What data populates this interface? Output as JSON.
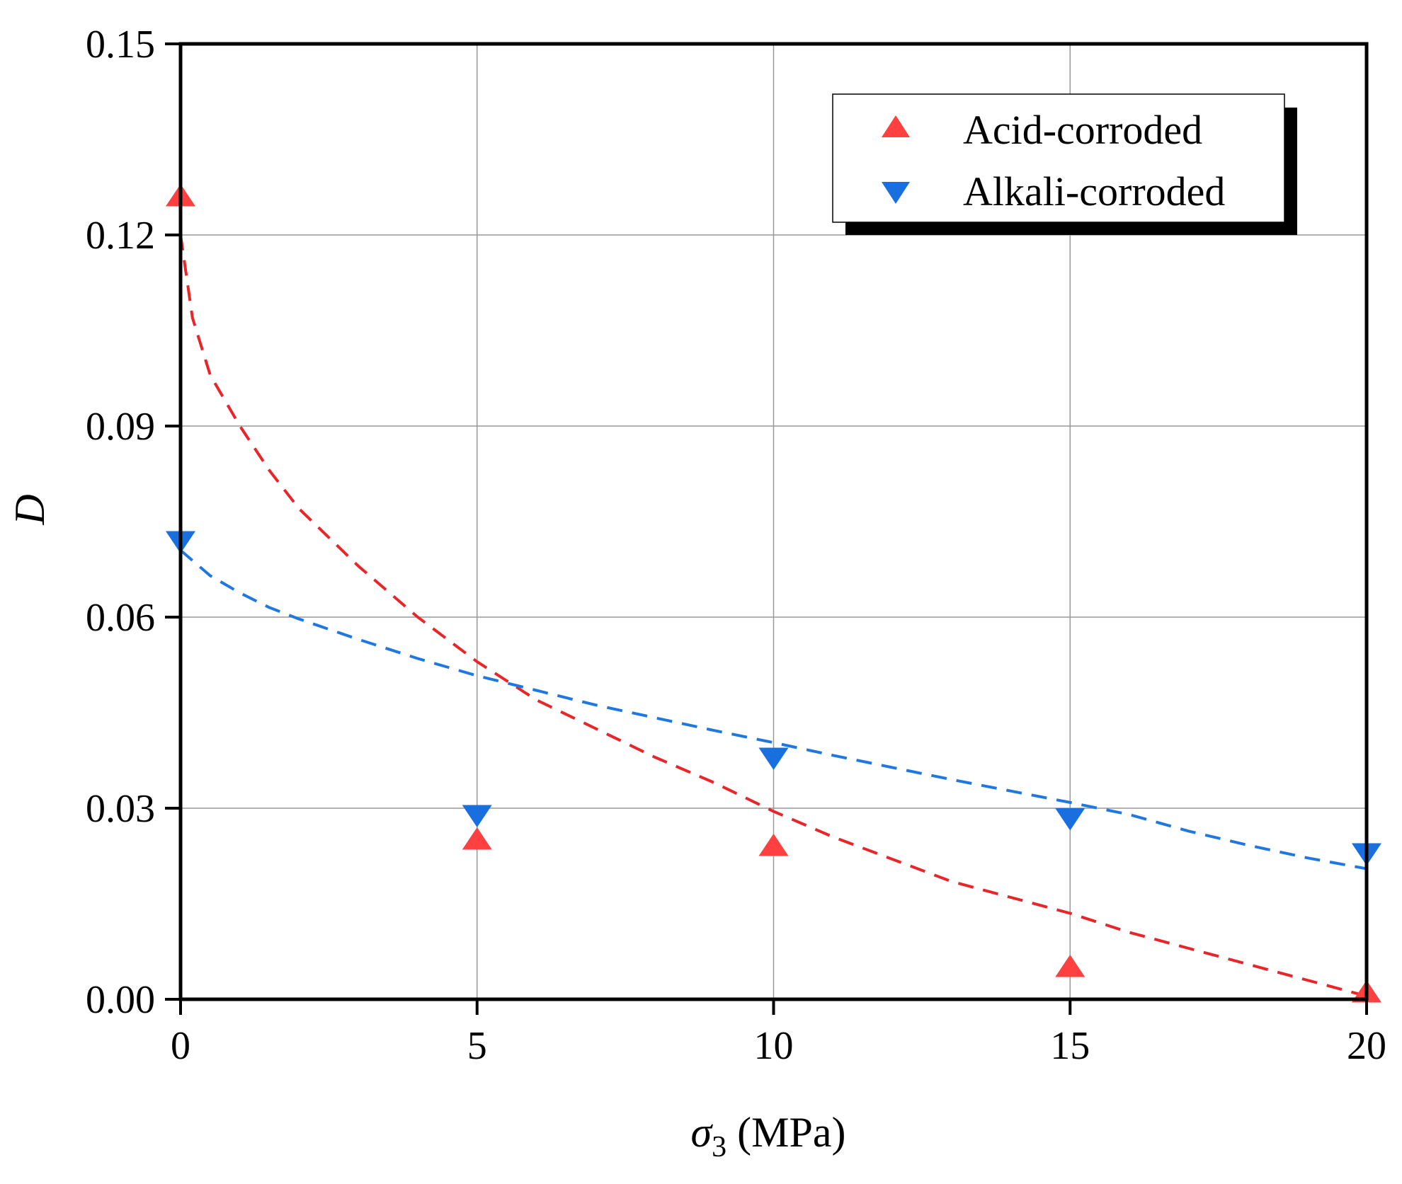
{
  "chart_data": {
    "type": "scatter",
    "title": "",
    "xlabel": {
      "symbol": "σ",
      "subscript": "3",
      "unit": " (MPa)"
    },
    "ylabel": "D",
    "xlim": [
      0,
      20
    ],
    "ylim": [
      0,
      0.15
    ],
    "xticks": [
      0,
      5,
      10,
      15,
      20
    ],
    "xtick_labels": [
      "0",
      "5",
      "10",
      "15",
      "20"
    ],
    "yticks": [
      0,
      0.03,
      0.06,
      0.09,
      0.12,
      0.15
    ],
    "ytick_labels": [
      "0.00",
      "0.03",
      "0.06",
      "0.09",
      "0.12",
      "0.15"
    ],
    "grid": true,
    "legend_position": "top-right",
    "series": [
      {
        "name": "Acid-corroded",
        "marker": "triangle-up",
        "color": "#ff4040",
        "x": [
          0,
          5,
          10,
          15,
          20
        ],
        "y": [
          0.126,
          0.025,
          0.024,
          0.005,
          0.001
        ],
        "fit": {
          "style": "dashed",
          "color": "#e8262a",
          "x": [
            0,
            0.2,
            0.5,
            1,
            1.5,
            2,
            3,
            4,
            5,
            6,
            7,
            8,
            9,
            10,
            11,
            12,
            13,
            14,
            15,
            16,
            17,
            18,
            19,
            20
          ],
          "y": [
            0.12,
            0.107,
            0.098,
            0.09,
            0.083,
            0.077,
            0.068,
            0.06,
            0.053,
            0.047,
            0.0425,
            0.038,
            0.034,
            0.0295,
            0.0255,
            0.022,
            0.0185,
            0.016,
            0.0135,
            0.0105,
            0.008,
            0.0055,
            0.003,
            0.0005
          ]
        }
      },
      {
        "name": "Alkali-corroded",
        "marker": "triangle-down",
        "color": "#1a6fdf",
        "x": [
          0,
          5,
          10,
          15,
          20
        ],
        "y": [
          0.072,
          0.029,
          0.038,
          0.0285,
          0.023
        ],
        "fit": {
          "style": "dashed",
          "color": "#1f78e0",
          "x": [
            0,
            0.5,
            1,
            1.5,
            2,
            3,
            4,
            5,
            6,
            7,
            8,
            9,
            10,
            11,
            12,
            13,
            14,
            15,
            16,
            17,
            18,
            19,
            20
          ],
          "y": [
            0.0705,
            0.0665,
            0.0638,
            0.0615,
            0.0597,
            0.0565,
            0.0535,
            0.0508,
            0.0485,
            0.0462,
            0.0442,
            0.0422,
            0.0403,
            0.0383,
            0.0364,
            0.0345,
            0.0327,
            0.0309,
            0.029,
            0.0264,
            0.0242,
            0.0222,
            0.0205
          ]
        }
      }
    ]
  },
  "colors": {
    "frame": "#000000",
    "grid": "#999999",
    "background": "#ffffff"
  }
}
